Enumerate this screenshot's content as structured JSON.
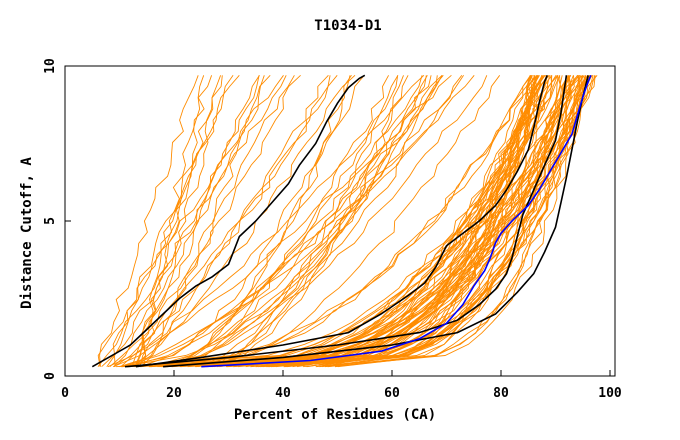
{
  "chart_data": {
    "type": "line",
    "title": "T1034-D1",
    "xlabel": "Percent of Residues (CA)",
    "ylabel": "Distance Cutoff, A",
    "xlim": [
      0,
      100
    ],
    "ylim": [
      0,
      10
    ],
    "x_ticks": [
      "0",
      "20",
      "40",
      "60",
      "80",
      "100"
    ],
    "y_ticks": [
      "0",
      "5",
      "10"
    ],
    "grid": false,
    "background_colors": {
      "orange": "#ff8c00"
    },
    "highlight_colors": {
      "black": "#000000",
      "blue": "#0000ff"
    },
    "orange_series_count": 120,
    "highlight_series": [
      {
        "color": "#000000",
        "x": [
          5,
          8,
          12,
          15,
          18,
          21,
          24,
          27,
          30,
          32,
          35,
          38,
          41,
          43,
          46,
          48,
          50,
          52,
          54,
          55
        ],
        "y": [
          0.3,
          0.6,
          1.0,
          1.5,
          2.0,
          2.5,
          2.9,
          3.2,
          3.6,
          4.5,
          5.0,
          5.6,
          6.2,
          6.8,
          7.5,
          8.2,
          8.8,
          9.3,
          9.6,
          9.7
        ]
      },
      {
        "color": "#000000",
        "x": [
          13,
          25,
          40,
          52,
          58,
          63,
          66,
          68,
          70,
          73,
          76,
          79,
          81,
          83,
          85,
          86,
          87,
          88,
          88.5
        ],
        "y": [
          0.3,
          0.6,
          1.0,
          1.4,
          2.0,
          2.6,
          3.0,
          3.5,
          4.2,
          4.6,
          5.0,
          5.5,
          6.0,
          6.6,
          7.3,
          8.0,
          8.8,
          9.5,
          9.7
        ]
      },
      {
        "color": "#000000",
        "x": [
          11,
          30,
          50,
          65,
          72,
          76,
          79,
          81,
          82,
          83,
          84,
          86,
          88,
          90,
          91,
          92
        ],
        "y": [
          0.3,
          0.6,
          1.0,
          1.4,
          1.8,
          2.3,
          2.8,
          3.3,
          3.8,
          4.5,
          5.2,
          6.0,
          6.8,
          7.6,
          8.5,
          9.7
        ]
      },
      {
        "color": "#000000",
        "x": [
          18,
          40,
          60,
          72,
          79,
          83,
          86,
          88,
          90,
          91,
          92,
          93,
          94,
          95,
          96
        ],
        "y": [
          0.3,
          0.6,
          1.0,
          1.4,
          2.0,
          2.7,
          3.3,
          4.0,
          4.8,
          5.6,
          6.4,
          7.3,
          8.2,
          9.0,
          9.7
        ]
      },
      {
        "color": "#0000ff",
        "x": [
          25,
          45,
          58,
          65,
          70,
          73,
          75,
          77,
          78,
          79,
          80,
          82,
          85,
          87,
          89,
          91,
          93,
          94,
          95,
          96,
          96.5
        ],
        "y": [
          0.3,
          0.5,
          0.8,
          1.2,
          1.7,
          2.3,
          2.9,
          3.4,
          3.8,
          4.3,
          4.6,
          5.0,
          5.5,
          6.0,
          6.6,
          7.2,
          7.8,
          8.4,
          9.0,
          9.5,
          9.7
        ]
      }
    ]
  }
}
